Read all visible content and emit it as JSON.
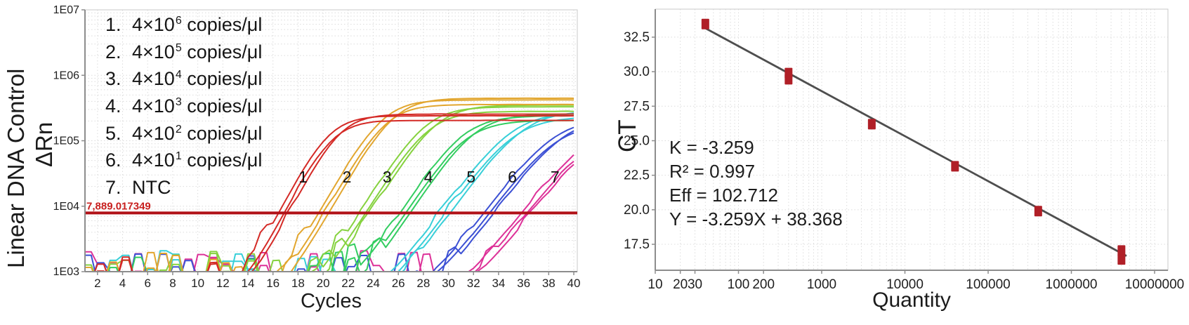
{
  "figure": {
    "background": "#ffffff"
  },
  "chart_data": [
    {
      "type": "line",
      "panel": "amplification-plot",
      "ylabel_outer": "Linear DNA Control",
      "ylabel_inner": "ΔRn",
      "xlabel": "Cycles",
      "y_scale": "log",
      "xlim": [
        1,
        40.3
      ],
      "ylim": [
        1000,
        10000000
      ],
      "grid": true,
      "x_ticks": [
        2,
        4,
        6,
        8,
        10,
        12,
        14,
        16,
        18,
        20,
        22,
        24,
        26,
        28,
        30,
        32,
        34,
        36,
        38,
        40
      ],
      "y_tick_labels": [
        "1E07",
        "1E06",
        "1E05",
        "1E04",
        "1E03"
      ],
      "y_tick_values": [
        10000000,
        1000000,
        100000,
        10000,
        1000
      ],
      "threshold": {
        "value": 7889.017349,
        "label": "7,889.017349",
        "color": "#b11218",
        "label_color": "#c8201f"
      },
      "legend": [
        {
          "num": "1.",
          "base": "4×10",
          "sup": "6",
          "unit": " copies/μl"
        },
        {
          "num": "2.",
          "base": "4×10",
          "sup": "5",
          "unit": " copies/μl"
        },
        {
          "num": "3.",
          "base": "4×10",
          "sup": "4",
          "unit": " copies/μl"
        },
        {
          "num": "4.",
          "base": "4×10",
          "sup": "3",
          "unit": " copies/μl"
        },
        {
          "num": "5.",
          "base": "4×10",
          "sup": "2",
          "unit": " copies/μl"
        },
        {
          "num": "6.",
          "base": "4×10",
          "sup": "1",
          "unit": " copies/μl"
        },
        {
          "num": "7.",
          "base": "NTC",
          "sup": "",
          "unit": ""
        }
      ],
      "series": [
        {
          "label": "1",
          "conc": "4×10^6 copies/μl",
          "color": "#d42a26",
          "ct": 16.8,
          "plateau": 240000,
          "k": 0.85
        },
        {
          "label": "2",
          "conc": "4×10^5 copies/μl",
          "color": "#e2a62f",
          "ct": 20.0,
          "plateau": 420000,
          "k": 0.78
        },
        {
          "label": "3",
          "conc": "4×10^4 copies/μl",
          "color": "#86d23f",
          "ct": 23.3,
          "plateau": 330000,
          "k": 0.72
        },
        {
          "label": "4",
          "conc": "4×10^3 copies/μl",
          "color": "#33cd60",
          "ct": 26.5,
          "plateau": 240000,
          "k": 0.68
        },
        {
          "label": "5",
          "conc": "4×10^2 copies/μl",
          "color": "#38cfd8",
          "ct": 29.7,
          "plateau": 270000,
          "k": 0.62
        },
        {
          "label": "6",
          "conc": "4×10^1 copies/μl",
          "color": "#3c50d4",
          "ct": 33.2,
          "plateau": 220000,
          "k": 0.6
        },
        {
          "label": "7",
          "conc": "NTC",
          "color": "#dd3198",
          "ct": 36.2,
          "plateau": 180000,
          "k": 0.58
        }
      ],
      "curve_labels": [
        {
          "text": "1",
          "x": 18.4,
          "y": 23000
        },
        {
          "text": "2",
          "x": 21.9,
          "y": 23000
        },
        {
          "text": "3",
          "x": 25.1,
          "y": 23000
        },
        {
          "text": "4",
          "x": 28.4,
          "y": 23000
        },
        {
          "text": "5",
          "x": 31.8,
          "y": 23000
        },
        {
          "text": "6",
          "x": 35.1,
          "y": 23000
        },
        {
          "text": "7",
          "x": 38.5,
          "y": 23000
        }
      ]
    },
    {
      "type": "scatter",
      "panel": "standard-curve",
      "ylabel": "CT",
      "xlabel": "Quantity",
      "x_scale": "log",
      "xlim": [
        10,
        14000000
      ],
      "ylim": [
        15.6,
        34.5
      ],
      "grid": true,
      "x_tick_values": [
        10,
        20,
        30,
        100,
        200,
        1000,
        10000,
        100000,
        1000000,
        10000000
      ],
      "x_tick_labels": [
        "10",
        "20",
        "30",
        "100",
        "200",
        "1000",
        "10000",
        "100000",
        "1000000",
        "10000000"
      ],
      "y_tick_values": [
        32.5,
        30,
        27.5,
        25,
        22.5,
        20,
        17.5
      ],
      "y_tick_labels": [
        "32.5",
        "30.0",
        "27.5",
        "25.0",
        "22.5",
        "20.0",
        "17.5"
      ],
      "points": [
        {
          "x": 40,
          "y": 33.45
        },
        {
          "x": 400,
          "y": 29.9
        },
        {
          "x": 400,
          "y": 29.45
        },
        {
          "x": 4000,
          "y": 26.2
        },
        {
          "x": 40000,
          "y": 23.15
        },
        {
          "x": 400000,
          "y": 19.9
        },
        {
          "x": 4000000,
          "y": 17.05
        },
        {
          "x": 4000000,
          "y": 16.4
        }
      ],
      "fit": {
        "slope": -3.259,
        "intercept": 38.368,
        "x_from": 38,
        "x_to": 4600000,
        "color": "#4e4e4e"
      },
      "stats": [
        "K = -3.259",
        "R² = 0.997",
        "Eff = 102.712",
        "Y = -3.259X + 38.368"
      ],
      "marker_color": "#b01f27"
    }
  ]
}
